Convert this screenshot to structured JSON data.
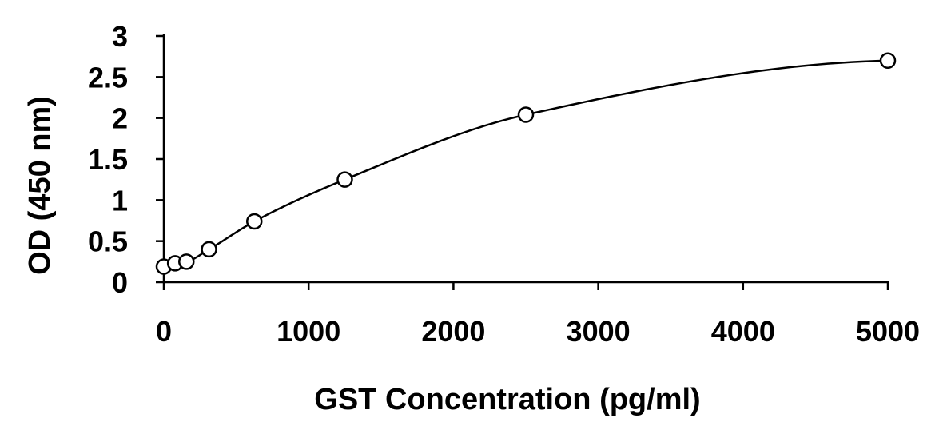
{
  "chart_data": {
    "type": "scatter",
    "xlabel": "GST Concentration (pg/ml)",
    "ylabel": "OD (450 nm)",
    "xlim": [
      0,
      5000
    ],
    "ylim": [
      0,
      3
    ],
    "x_ticks": [
      0,
      1000,
      2000,
      3000,
      4000,
      5000
    ],
    "x_tick_labels": [
      "0",
      "1000",
      "2000",
      "3000",
      "4000",
      "5000"
    ],
    "y_ticks": [
      0,
      0.5,
      1,
      1.5,
      2,
      2.5,
      3
    ],
    "y_tick_labels": [
      "0",
      "0.5",
      "1",
      "1.5",
      "2",
      "2.5",
      "3"
    ],
    "grid": false,
    "series": [
      {
        "x": [
          0,
          78,
          156,
          312,
          625,
          1250,
          2500,
          5000
        ],
        "y": [
          0.19,
          0.23,
          0.25,
          0.4,
          0.74,
          1.25,
          2.04,
          2.7
        ],
        "marker": "open-circle",
        "fit_curve": true
      }
    ]
  }
}
